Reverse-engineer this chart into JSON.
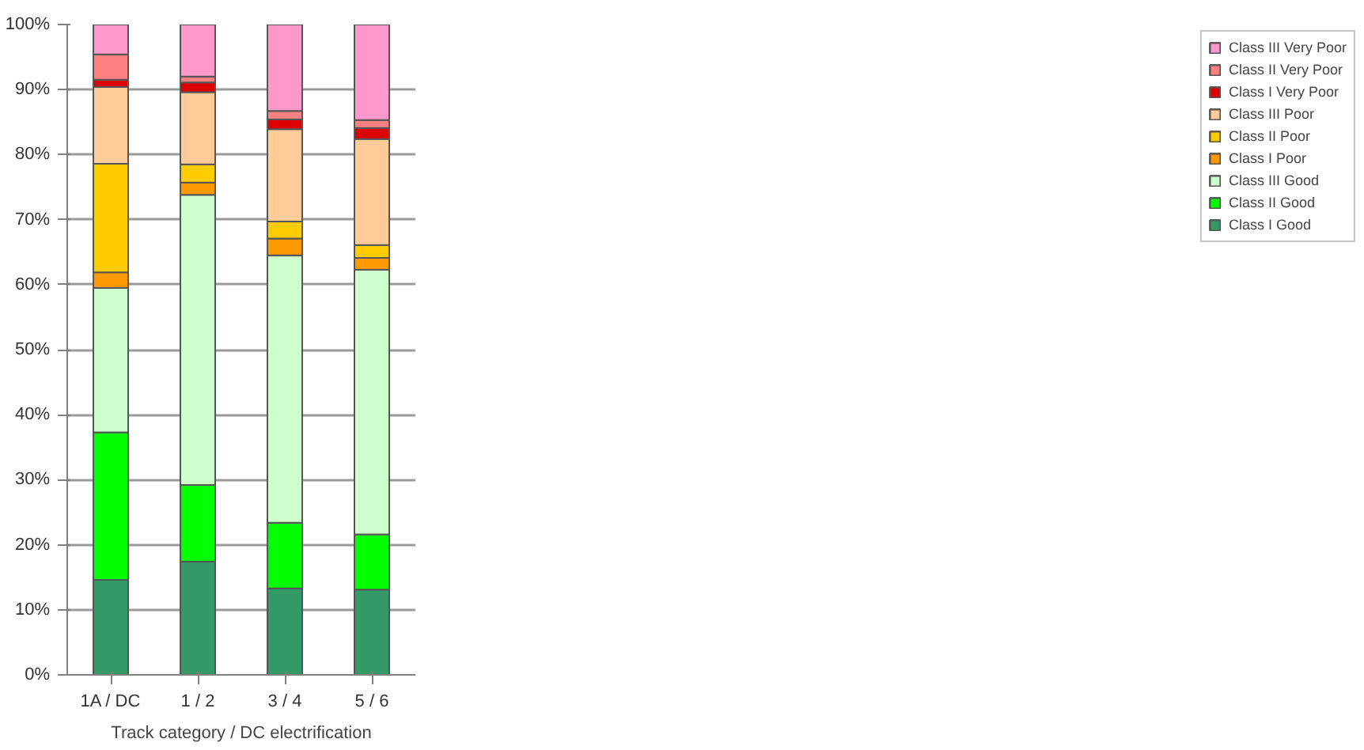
{
  "chart_data": {
    "type": "bar",
    "stacked": true,
    "xlabel": "Track category / DC electrification",
    "categories": [
      "1A / DC",
      "1 / 2",
      "3 / 4",
      "5 / 6"
    ],
    "series": [
      {
        "name": "Class I Good",
        "color": "#339966",
        "values": [
          14.6,
          17.4,
          13.3,
          13.1
        ]
      },
      {
        "name": "Class II Good",
        "color": "#00ff00",
        "values": [
          22.7,
          11.8,
          10.1,
          8.5
        ]
      },
      {
        "name": "Class III Good",
        "color": "#ccffcc",
        "values": [
          22.2,
          44.6,
          41.1,
          40.7
        ]
      },
      {
        "name": "Class I Poor",
        "color": "#ff9900",
        "values": [
          2.4,
          1.9,
          2.6,
          1.8
        ]
      },
      {
        "name": "Class II Poor",
        "color": "#ffcc00",
        "values": [
          16.7,
          2.8,
          2.6,
          2.0
        ]
      },
      {
        "name": "Class III Poor",
        "color": "#ffcc99",
        "values": [
          11.8,
          11.1,
          14.2,
          16.3
        ]
      },
      {
        "name": "Class I Very Poor",
        "color": "#dd0000",
        "values": [
          1.1,
          1.5,
          1.5,
          1.7
        ]
      },
      {
        "name": "Class II Very Poor",
        "color": "#ff8080",
        "values": [
          3.9,
          0.9,
          1.3,
          1.2
        ]
      },
      {
        "name": "Class III Very Poor",
        "color": "#ff99cc",
        "values": [
          4.6,
          8.0,
          13.3,
          14.7
        ]
      }
    ],
    "ylim": [
      0,
      100
    ],
    "yticks": [
      {
        "value": 0,
        "label": "0%"
      },
      {
        "value": 10,
        "label": "10%"
      },
      {
        "value": 20,
        "label": "20%"
      },
      {
        "value": 30,
        "label": "30%"
      },
      {
        "value": 40,
        "label": "40%"
      },
      {
        "value": 50,
        "label": "50%"
      },
      {
        "value": 60,
        "label": "60%"
      },
      {
        "value": 70,
        "label": "70%"
      },
      {
        "value": 80,
        "label": "80%"
      },
      {
        "value": 90,
        "label": "90%"
      },
      {
        "value": 100,
        "label": "100%"
      }
    ],
    "grid": "y",
    "legend": "right"
  }
}
